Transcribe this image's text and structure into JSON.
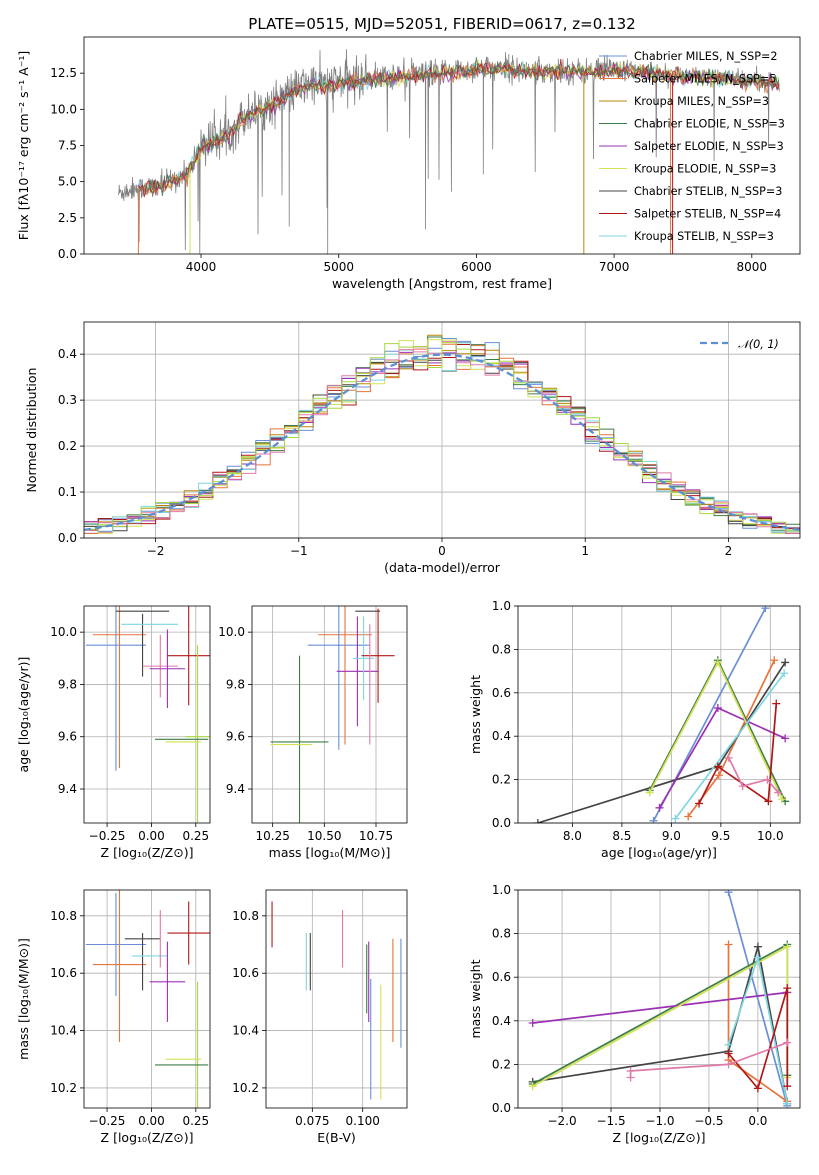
{
  "title": "PLATE=0515, MJD=52051, FIBERID=0617, z=0.132",
  "colors": {
    "chabrier_miles": "#6a8fd8",
    "salpeter_miles": "#e8743b",
    "kroupa_miles": "#b8860b",
    "chabrier_elodie": "#3e7d48",
    "salpeter_elodie": "#9b30b4",
    "kroupa_elodie": "#d4e157",
    "chabrier_stelib": "#444444",
    "salpeter_stelib": "#b01818",
    "kroupa_stelib": "#7fd6e0",
    "pink": "#e07aa8",
    "lime": "#a8d840",
    "observed": "#808080",
    "gaussian": "#5b8fd6"
  },
  "chart_data": [
    {
      "id": "spectrum",
      "type": "line",
      "title": "PLATE=0515, MJD=52051, FIBERID=0617, z=0.132",
      "xlabel": "wavelength [Angstrom, rest frame]",
      "ylabel": "Flux [fλ10⁻¹⁷ erg cm⁻² s⁻¹ A⁻¹]",
      "xlim": [
        3150,
        8350
      ],
      "ylim": [
        0,
        15
      ],
      "xticks": [
        "4000",
        "5000",
        "6000",
        "7000",
        "8000"
      ],
      "yticks": [
        "0.0",
        "2.5",
        "5.0",
        "7.5",
        "10.0",
        "12.5"
      ],
      "grid": false,
      "legend_position": "top-right",
      "legend": [
        "Chabrier MILES, N_SSP=2",
        "Salpeter MILES, N_SSP=5",
        "Kroupa MILES, N_SSP=3",
        "Chabrier ELODIE, N_SSP=3",
        "Salpeter ELODIE, N_SSP=3",
        "Kroupa ELODIE, N_SSP=3",
        "Chabrier STELIB, N_SSP=3",
        "Salpeter STELIB, N_SSP=4",
        "Kroupa STELIB, N_SSP=3"
      ],
      "continuum": {
        "x": [
          3400,
          3500,
          3600,
          3700,
          3800,
          3900,
          4000,
          4100,
          4200,
          4300,
          4400,
          4500,
          4600,
          4700,
          4800,
          4900,
          5000,
          5200,
          5400,
          5600,
          5800,
          6000,
          6200,
          6400,
          6600,
          6800,
          7000,
          7200,
          7400,
          7600,
          7800,
          8000,
          8200
        ],
        "y": [
          4.2,
          4.5,
          4.6,
          4.8,
          5.1,
          5.6,
          7.5,
          7.9,
          8.3,
          9.4,
          9.9,
          10.3,
          10.9,
          11.4,
          11.8,
          11.7,
          11.9,
          12.1,
          12.3,
          12.4,
          12.6,
          12.8,
          12.9,
          12.6,
          12.7,
          12.6,
          12.8,
          12.7,
          12.4,
          12.3,
          12.2,
          12.0,
          11.9
        ]
      },
      "model_start_x": 3540
    },
    {
      "id": "residuals",
      "type": "histogram",
      "xlabel": "(data-model)/error",
      "ylabel": "Normed distribution",
      "xlim": [
        -2.5,
        2.5
      ],
      "ylim": [
        0,
        0.47
      ],
      "xticks": [
        "−2",
        "−1",
        "0",
        "1",
        "2"
      ],
      "yticks": [
        "0.0",
        "0.1",
        "0.2",
        "0.3",
        "0.4"
      ],
      "grid": true,
      "legend_position": "top-right",
      "legend": [
        "𝒩(0, 1)"
      ],
      "bin_width": 0.1,
      "gaussian": {
        "mean": 0,
        "sigma": 1
      }
    },
    {
      "id": "age_vs_Z",
      "type": "errorbar",
      "xlabel": "Z [log₁₀(Z/Z⊙)]",
      "ylabel": "age  [log₁₀(age/yr)]",
      "xlim": [
        -0.38,
        0.33
      ],
      "ylim": [
        9.27,
        10.1
      ],
      "xticks": [
        "−0.25",
        "0.00",
        "0.25"
      ],
      "yticks": [
        "9.4",
        "9.6",
        "9.8",
        "10.0"
      ],
      "grid": true,
      "points": [
        {
          "x": -0.2,
          "xerr": 0.17,
          "y": 9.95,
          "yerr": 0.48,
          "c": "#6a8fd8"
        },
        {
          "x": -0.18,
          "xerr": 0.15,
          "y": 9.99,
          "yerr": 0.51,
          "c": "#e8743b"
        },
        {
          "x": -0.05,
          "xerr": 0.15,
          "y": 10.08,
          "yerr": 0.0,
          "c": "#444444"
        },
        {
          "x": -0.05,
          "xerr": 0.0,
          "y": 9.95,
          "yerr": 0.12,
          "c": "#444444"
        },
        {
          "x": -0.01,
          "xerr": 0.16,
          "y": 10.03,
          "yerr": 0.0,
          "c": "#7fd6e0"
        },
        {
          "x": 0.05,
          "xerr": 0.1,
          "y": 9.87,
          "yerr": 0.12,
          "c": "#e07aa8"
        },
        {
          "x": 0.09,
          "xerr": 0.1,
          "y": 9.86,
          "yerr": 0.15,
          "c": "#9b30b4"
        },
        {
          "x": 0.21,
          "xerr": 0.12,
          "y": 9.91,
          "yerr": 0.19,
          "c": "#b01818"
        },
        {
          "x": 0.26,
          "xerr": 0.07,
          "y": 9.6,
          "yerr": 0.35,
          "c": "#a8d840"
        },
        {
          "x": 0.17,
          "xerr": 0.15,
          "y": 9.59,
          "yerr": 0.0,
          "c": "#3e7d48"
        },
        {
          "x": 0.18,
          "xerr": 0.1,
          "y": 9.58,
          "yerr": 0.0,
          "c": "#d4e157"
        }
      ]
    },
    {
      "id": "age_vs_mass",
      "type": "errorbar",
      "xlabel": "mass [log₁₀(M/M⊙)]",
      "ylabel": "",
      "xlim": [
        10.15,
        10.9
      ],
      "ylim": [
        9.27,
        10.1
      ],
      "xticks": [
        "10.25",
        "10.50",
        "10.75"
      ],
      "yticks": [
        "9.4",
        "9.6",
        "9.8",
        "10.0"
      ],
      "grid": true,
      "points": [
        {
          "x": 10.38,
          "xerr": 0.14,
          "y": 9.58,
          "yerr": 0.33,
          "c": "#3e7d48"
        },
        {
          "x": 10.34,
          "xerr": 0.1,
          "y": 9.57,
          "yerr": 0.0,
          "c": "#d4e157"
        },
        {
          "x": 10.6,
          "xerr": 0.13,
          "y": 9.99,
          "yerr": 0.42,
          "c": "#e8743b"
        },
        {
          "x": 10.57,
          "xerr": 0.15,
          "y": 9.95,
          "yerr": 0.4,
          "c": "#6a8fd8"
        },
        {
          "x": 10.66,
          "xerr": 0.1,
          "y": 9.85,
          "yerr": 0.21,
          "c": "#9b30b4"
        },
        {
          "x": 10.71,
          "xerr": 0.06,
          "y": 10.08,
          "yerr": 0.0,
          "c": "#444444"
        },
        {
          "x": 10.69,
          "xerr": 0.05,
          "y": 9.9,
          "yerr": 0.16,
          "c": "#7fd6e0"
        },
        {
          "x": 10.76,
          "xerr": 0.08,
          "y": 9.91,
          "yerr": 0.18,
          "c": "#b01818"
        },
        {
          "x": 10.72,
          "xerr": 0.0,
          "y": 9.8,
          "yerr": 0.23,
          "c": "#e07aa8"
        }
      ]
    },
    {
      "id": "weight_vs_age",
      "type": "line",
      "xlabel": "age  [log₁₀(age/yr)]",
      "ylabel": "mass weight",
      "xlim": [
        7.45,
        10.3
      ],
      "ylim": [
        0,
        1
      ],
      "xticks": [
        "8.0",
        "8.5",
        "9.0",
        "9.5",
        "10.0"
      ],
      "yticks": [
        "0.0",
        "0.2",
        "0.4",
        "0.6",
        "0.8",
        "1.0"
      ],
      "grid": true,
      "series": [
        {
          "c": "#6a8fd8",
          "x": [
            8.82,
            9.95
          ],
          "y": [
            0.01,
            0.99
          ]
        },
        {
          "c": "#e8743b",
          "x": [
            9.17,
            9.48,
            10.04
          ],
          "y": [
            0.03,
            0.22,
            0.75
          ]
        },
        {
          "c": "#444444",
          "x": [
            7.65,
            9.47,
            10.15
          ],
          "y": [
            0.0,
            0.26,
            0.74
          ]
        },
        {
          "c": "#3e7d48",
          "x": [
            8.78,
            9.47,
            10.15
          ],
          "y": [
            0.15,
            0.75,
            0.1
          ]
        },
        {
          "c": "#9b30b4",
          "x": [
            8.88,
            9.47,
            10.15
          ],
          "y": [
            0.07,
            0.53,
            0.39
          ]
        },
        {
          "c": "#d4e157",
          "x": [
            8.78,
            9.47,
            10.12
          ],
          "y": [
            0.14,
            0.74,
            0.11
          ]
        },
        {
          "c": "#7fd6e0",
          "x": [
            9.04,
            10.14
          ],
          "y": [
            0.02,
            0.69
          ]
        },
        {
          "c": "#b01818",
          "x": [
            9.28,
            9.47,
            9.98,
            10.06
          ],
          "y": [
            0.09,
            0.26,
            0.1,
            0.55
          ]
        },
        {
          "c": "#e07aa8",
          "x": [
            9.58,
            9.72,
            9.97,
            10.08
          ],
          "y": [
            0.3,
            0.17,
            0.2,
            0.14
          ]
        }
      ]
    },
    {
      "id": "mass_vs_Z",
      "type": "errorbar",
      "xlabel": "Z [log₁₀(Z/Z⊙)]",
      "ylabel": "mass [log₁₀(M/M⊙)]",
      "xlim": [
        -0.38,
        0.33
      ],
      "ylim": [
        10.13,
        10.89
      ],
      "xticks": [
        "−0.25",
        "0.00",
        "0.25"
      ],
      "yticks": [
        "10.2",
        "10.4",
        "10.6",
        "10.8"
      ],
      "grid": true,
      "points": [
        {
          "x": -0.2,
          "xerr": 0.17,
          "y": 10.7,
          "yerr": 0.18,
          "c": "#6a8fd8"
        },
        {
          "x": -0.18,
          "xerr": 0.15,
          "y": 10.63,
          "yerr": 0.27,
          "c": "#e8743b"
        },
        {
          "x": -0.05,
          "xerr": 0.1,
          "y": 10.72,
          "yerr": 0.0,
          "c": "#444444"
        },
        {
          "x": -0.05,
          "xerr": 0.0,
          "y": 10.64,
          "yerr": 0.1,
          "c": "#444444"
        },
        {
          "x": -0.01,
          "xerr": 0.1,
          "y": 10.66,
          "yerr": 0.0,
          "c": "#7fd6e0"
        },
        {
          "x": 0.05,
          "xerr": 0.0,
          "y": 10.72,
          "yerr": 0.1,
          "c": "#e07aa8"
        },
        {
          "x": 0.09,
          "xerr": 0.1,
          "y": 10.57,
          "yerr": 0.14,
          "c": "#9b30b4"
        },
        {
          "x": 0.21,
          "xerr": 0.12,
          "y": 10.74,
          "yerr": 0.11,
          "c": "#b01818"
        },
        {
          "x": 0.26,
          "xerr": 0.0,
          "y": 10.35,
          "yerr": 0.22,
          "c": "#a8d840"
        },
        {
          "x": 0.17,
          "xerr": 0.15,
          "y": 10.28,
          "yerr": 0.0,
          "c": "#3e7d48"
        },
        {
          "x": 0.18,
          "xerr": 0.1,
          "y": 10.3,
          "yerr": 0.0,
          "c": "#d4e157"
        }
      ]
    },
    {
      "id": "mass_vs_ebv",
      "type": "errorbar",
      "xlabel": "E(B-V)",
      "ylabel": "",
      "xlim": [
        0.052,
        0.122
      ],
      "ylim": [
        10.13,
        10.89
      ],
      "xticks": [
        "0.075",
        "0.100"
      ],
      "yticks": [
        "10.2",
        "10.4",
        "10.6",
        "10.8"
      ],
      "grid": true,
      "points": [
        {
          "x": 0.055,
          "xerr": 0.0,
          "y": 10.77,
          "yerr": 0.08,
          "c": "#b01818"
        },
        {
          "x": 0.072,
          "xerr": 0.0,
          "y": 10.64,
          "yerr": 0.1,
          "c": "#7fd6e0"
        },
        {
          "x": 0.074,
          "xerr": 0.0,
          "y": 10.64,
          "yerr": 0.1,
          "c": "#444444"
        },
        {
          "x": 0.09,
          "xerr": 0.0,
          "y": 10.72,
          "yerr": 0.1,
          "c": "#e07aa8"
        },
        {
          "x": 0.102,
          "xerr": 0.0,
          "y": 10.58,
          "yerr": 0.12,
          "c": "#3e7d48"
        },
        {
          "x": 0.103,
          "xerr": 0.0,
          "y": 10.57,
          "yerr": 0.14,
          "c": "#9b30b4"
        },
        {
          "x": 0.104,
          "xerr": 0.0,
          "y": 10.37,
          "yerr": 0.21,
          "c": "#6a8fd8"
        },
        {
          "x": 0.109,
          "xerr": 0.0,
          "y": 10.36,
          "yerr": 0.2,
          "c": "#d4e157"
        },
        {
          "x": 0.115,
          "xerr": 0.0,
          "y": 10.54,
          "yerr": 0.18,
          "c": "#e8743b"
        },
        {
          "x": 0.119,
          "xerr": 0.0,
          "y": 10.53,
          "yerr": 0.19,
          "c": "#6a8fd8"
        }
      ]
    },
    {
      "id": "weight_vs_Z",
      "type": "line",
      "xlabel": "Z [log₁₀(Z/Z⊙)]",
      "ylabel": "mass weight",
      "xlim": [
        -2.45,
        0.43
      ],
      "ylim": [
        0,
        1
      ],
      "xticks": [
        "−2.0",
        "−1.5",
        "−1.0",
        "−0.5",
        "0.0"
      ],
      "yticks": [
        "0.0",
        "0.2",
        "0.4",
        "0.6",
        "0.8",
        "1.0"
      ],
      "grid": true,
      "series": [
        {
          "c": "#6a8fd8",
          "x": [
            -0.3,
            0.3
          ],
          "y": [
            0.99,
            0.01
          ]
        },
        {
          "c": "#e8743b",
          "x": [
            -0.3,
            -0.3,
            0.3
          ],
          "y": [
            0.75,
            0.22,
            0.03
          ]
        },
        {
          "c": "#444444",
          "x": [
            -2.3,
            -0.3,
            0.0,
            0.3
          ],
          "y": [
            0.12,
            0.26,
            0.74,
            0.02
          ]
        },
        {
          "c": "#3e7d48",
          "x": [
            -2.3,
            0.3,
            0.3
          ],
          "y": [
            0.11,
            0.75,
            0.15
          ]
        },
        {
          "c": "#9b30b4",
          "x": [
            -2.3,
            0.3
          ],
          "y": [
            0.39,
            0.53
          ]
        },
        {
          "c": "#d4e157",
          "x": [
            -2.3,
            0.3,
            0.3
          ],
          "y": [
            0.1,
            0.74,
            0.14
          ]
        },
        {
          "c": "#7fd6e0",
          "x": [
            -0.3,
            0.0,
            0.3
          ],
          "y": [
            0.29,
            0.69,
            0.02
          ]
        },
        {
          "c": "#b01818",
          "x": [
            -0.3,
            0.0,
            0.3,
            0.3
          ],
          "y": [
            0.25,
            0.09,
            0.55,
            0.1
          ]
        },
        {
          "c": "#e07aa8",
          "x": [
            -1.3,
            -1.3,
            -0.3,
            0.3
          ],
          "y": [
            0.14,
            0.17,
            0.2,
            0.3
          ]
        }
      ]
    }
  ]
}
